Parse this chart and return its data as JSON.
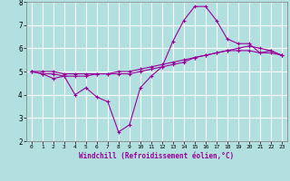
{
  "xlabel": "Windchill (Refroidissement éolien,°C)",
  "bg_color": "#b2e0e0",
  "grid_color": "#ffffff",
  "line_color": "#990099",
  "x": [
    0,
    1,
    2,
    3,
    4,
    5,
    6,
    7,
    8,
    9,
    10,
    11,
    12,
    13,
    14,
    15,
    16,
    17,
    18,
    19,
    20,
    21,
    22,
    23
  ],
  "series1": [
    5.0,
    4.9,
    4.7,
    4.8,
    4.0,
    4.3,
    3.9,
    3.7,
    2.4,
    2.7,
    4.3,
    4.8,
    5.2,
    6.3,
    7.2,
    7.8,
    7.8,
    7.2,
    6.4,
    6.2,
    6.2,
    5.8,
    5.9,
    5.7
  ],
  "series2": [
    5.0,
    4.9,
    4.9,
    4.8,
    4.8,
    4.8,
    4.9,
    4.9,
    5.0,
    5.0,
    5.1,
    5.2,
    5.3,
    5.4,
    5.5,
    5.6,
    5.7,
    5.8,
    5.9,
    6.0,
    6.1,
    6.0,
    5.9,
    5.7
  ],
  "series3": [
    5.0,
    5.0,
    5.0,
    4.9,
    4.9,
    4.9,
    4.9,
    4.9,
    4.9,
    4.9,
    5.0,
    5.1,
    5.2,
    5.3,
    5.4,
    5.6,
    5.7,
    5.8,
    5.9,
    5.9,
    5.9,
    5.8,
    5.8,
    5.7
  ],
  "ylim": [
    2,
    8
  ],
  "yticks": [
    2,
    3,
    4,
    5,
    6,
    7,
    8
  ],
  "xlim": [
    0,
    23
  ],
  "xticks": [
    0,
    1,
    2,
    3,
    4,
    5,
    6,
    7,
    8,
    9,
    10,
    11,
    12,
    13,
    14,
    15,
    16,
    17,
    18,
    19,
    20,
    21,
    22,
    23
  ]
}
